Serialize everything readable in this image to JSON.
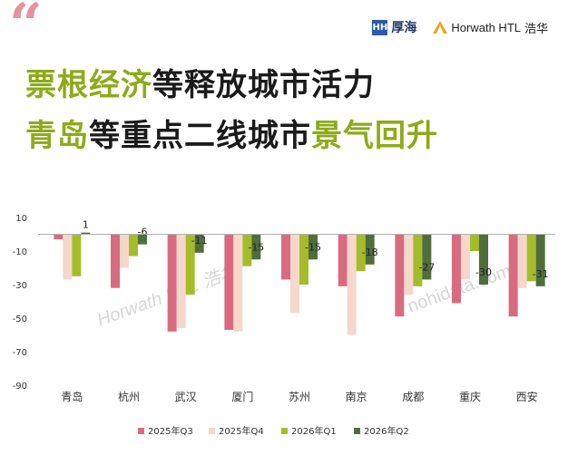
{
  "header": {
    "quote_mark": "“",
    "logo1_mark": "HH",
    "logo1_text": "厚海",
    "logo2_text": "Horwath HTL",
    "logo2_cn": "浩华"
  },
  "title": {
    "line1_hl": "票根经济",
    "line1_rest": "等释放城市活力",
    "line2_hl1": "青岛",
    "line2_mid": "等重点二线城市",
    "line2_hl2": "景气回升"
  },
  "colors": {
    "accent_title": "#8cab18",
    "q3_2025": "#d96b80",
    "q4_2025": "#f6d7cc",
    "q1_2026": "#a4bc2a",
    "q2_2026": "#4f6e3c"
  },
  "watermarks": [
    "Horwath HTL 浩华",
    "nohidata.com"
  ],
  "chart_data": {
    "type": "bar",
    "categories": [
      "青岛",
      "杭州",
      "武汉",
      "厦门",
      "苏州",
      "南京",
      "成都",
      "重庆",
      "西安"
    ],
    "series": [
      {
        "name": "2025年Q3",
        "values": [
          -3,
          -32,
          -58,
          -57,
          -27,
          -31,
          -49,
          -41,
          -49
        ]
      },
      {
        "name": "2025年Q4",
        "values": [
          -27,
          -20,
          -56,
          -58,
          -47,
          -60,
          -36,
          -27,
          -32
        ]
      },
      {
        "name": "2026年Q1",
        "values": [
          -25,
          -13,
          -36,
          -19,
          -30,
          -22,
          -31,
          -10,
          -28
        ]
      },
      {
        "name": "2026年Q2",
        "values": [
          1,
          -6,
          -11,
          -15,
          -15,
          -18,
          -27,
          -30,
          -31
        ]
      }
    ],
    "data_labels_series": "2026年Q2",
    "data_labels": [
      "1",
      "-6",
      "-11",
      "-15",
      "-15",
      "-18",
      "-27",
      "-30",
      "-31"
    ],
    "yticks": [
      "10",
      "-10",
      "-30",
      "-50",
      "-70",
      "-90"
    ],
    "ylim": [
      -90,
      10
    ],
    "legend": "bottom",
    "grid": false
  }
}
